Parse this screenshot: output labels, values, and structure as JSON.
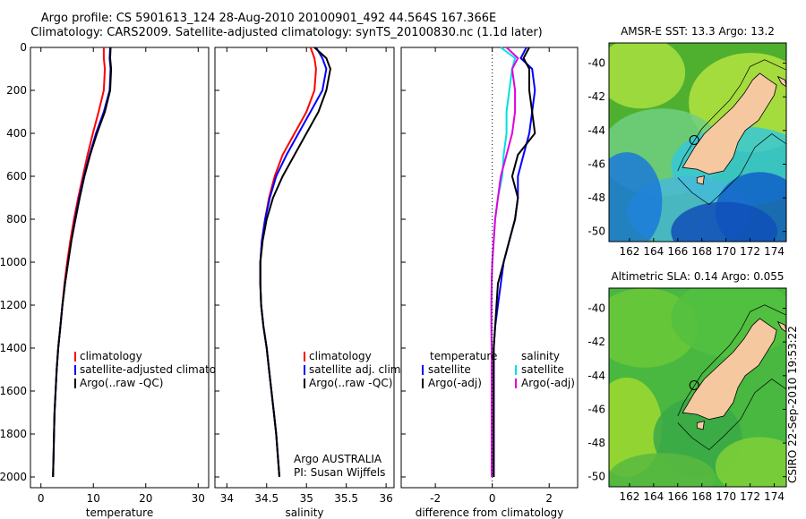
{
  "title_line1": "Argo profile: CS 5901613_124 28-Aug-2010 20100901_492 44.564S 167.366E",
  "title_line2": "Climatology: CARS2009. Satellite-adjusted climatology: synTS_20100830.nc (1.1d later)",
  "stamp": "CSIRO 22-Sep-2010 19:53:22",
  "colors": {
    "climatology": "#ff0000",
    "satellite": "#0000ff",
    "argo": "#000000",
    "salinity_sat": "#00e0e0",
    "salinity_argo": "#e000e0",
    "land": "#f5c8a0"
  },
  "chart_data": [
    {
      "type": "line",
      "xlabel": "temperature",
      "xlim": [
        -2,
        32
      ],
      "ylim": [
        0,
        2050
      ],
      "xticks": [
        0,
        10,
        20,
        30
      ],
      "yticks": [
        0,
        200,
        400,
        600,
        800,
        1000,
        1200,
        1400,
        1600,
        1800,
        2000
      ],
      "legend": [
        "climatology",
        "satellite-adjusted climatology",
        "Argo(..raw -QC)"
      ],
      "depth": [
        0,
        50,
        100,
        200,
        300,
        400,
        500,
        600,
        700,
        800,
        900,
        1000,
        1100,
        1200,
        1300,
        1400,
        1500,
        1600,
        1700,
        1800,
        1900,
        2000
      ],
      "series": [
        {
          "values": [
            12.0,
            12.0,
            12.2,
            12.0,
            11.0,
            9.9,
            8.9,
            8.0,
            7.1,
            6.3,
            5.6,
            5.0,
            4.5,
            4.1,
            3.7,
            3.3,
            3.0,
            2.8,
            2.6,
            2.5,
            2.4,
            2.3
          ]
        },
        {
          "values": [
            13.2,
            13.1,
            13.3,
            13.1,
            12.0,
            10.5,
            9.3,
            8.2,
            7.3,
            6.5,
            5.8,
            5.2,
            4.6,
            4.1,
            3.7,
            3.3,
            3.0,
            2.8,
            2.6,
            2.5,
            2.4,
            2.3
          ]
        },
        {
          "values": [
            13.3,
            13.2,
            13.4,
            13.2,
            12.2,
            10.7,
            9.4,
            8.3,
            7.4,
            6.6,
            5.8,
            5.2,
            4.6,
            4.1,
            3.7,
            3.3,
            3.0,
            2.8,
            2.6,
            2.5,
            2.4,
            2.3
          ]
        }
      ]
    },
    {
      "type": "line",
      "xlabel": "salinity",
      "xlim": [
        33.85,
        36.1
      ],
      "ylim": [
        0,
        2050
      ],
      "xticks": [
        34,
        34.5,
        35,
        35.5,
        36
      ],
      "legend": [
        "climatology",
        "satellite adj. clim.",
        "Argo(..raw -QC)"
      ],
      "annotation": [
        "Argo AUSTRALIA",
        "PI: Susan Wijffels"
      ],
      "depth": [
        0,
        50,
        100,
        200,
        300,
        400,
        500,
        600,
        700,
        800,
        900,
        1000,
        1100,
        1200,
        1300,
        1400,
        1500,
        1600,
        1700,
        1800,
        1900,
        2000
      ],
      "series": [
        {
          "values": [
            35.05,
            35.1,
            35.12,
            35.1,
            35.0,
            34.85,
            34.7,
            34.6,
            34.53,
            34.48,
            34.44,
            34.42,
            34.42,
            34.43,
            34.46,
            34.5,
            34.53,
            34.56,
            34.59,
            34.62,
            34.64,
            34.66
          ]
        },
        {
          "values": [
            35.12,
            35.2,
            35.25,
            35.2,
            35.05,
            34.9,
            34.75,
            34.62,
            34.54,
            34.48,
            34.44,
            34.42,
            34.42,
            34.43,
            34.46,
            34.5,
            34.53,
            34.56,
            34.59,
            34.62,
            34.64,
            34.66
          ]
        },
        {
          "values": [
            35.1,
            35.25,
            35.3,
            35.25,
            35.15,
            35.0,
            34.85,
            34.7,
            34.58,
            34.5,
            34.45,
            34.42,
            34.42,
            34.43,
            34.46,
            34.5,
            34.53,
            34.56,
            34.59,
            34.62,
            34.64,
            34.66
          ]
        }
      ]
    },
    {
      "type": "line",
      "xlabel": "difference from climatology",
      "xlim": [
        -3.2,
        3.0
      ],
      "ylim": [
        0,
        2050
      ],
      "xticks": [
        -2,
        0,
        2
      ],
      "legend_left": [
        "temperature",
        "satellite",
        "Argo(-adj)"
      ],
      "legend_right": [
        "salinity",
        "satellite",
        "Argo(-adj)"
      ],
      "depth": [
        0,
        50,
        100,
        200,
        300,
        400,
        500,
        600,
        700,
        800,
        900,
        1000,
        1100,
        1200,
        1300,
        1400,
        1500,
        1600,
        1700,
        1800,
        1900,
        2000
      ],
      "series": [
        {
          "values": [
            1.2,
            1.0,
            1.4,
            1.5,
            1.4,
            1.3,
            1.1,
            0.9,
            0.9,
            0.8,
            0.6,
            0.4,
            0.3,
            0.2,
            0.1,
            0.05,
            0.05,
            0.05,
            0.05,
            0.05,
            0.05,
            0.05
          ]
        },
        {
          "values": [
            1.3,
            1.1,
            1.3,
            1.3,
            1.4,
            1.5,
            0.9,
            0.7,
            0.9,
            0.8,
            0.6,
            0.4,
            0.2,
            0.15,
            0.1,
            0.05,
            0.05,
            0.05,
            0.05,
            0.05,
            0.05,
            0.05
          ]
        },
        {
          "values": [
            0.3,
            0.8,
            0.7,
            0.6,
            0.5,
            0.5,
            0.4,
            0.35,
            0.2,
            0.1,
            0.05,
            0.0,
            -0.02,
            -0.03,
            -0.03,
            -0.02,
            -0.02,
            -0.02,
            -0.02,
            -0.02,
            -0.02,
            -0.02
          ]
        },
        {
          "values": [
            0.5,
            0.9,
            0.7,
            0.8,
            0.8,
            0.7,
            0.5,
            0.3,
            0.2,
            0.1,
            0.05,
            0.0,
            -0.02,
            -0.03,
            -0.03,
            -0.02,
            -0.02,
            -0.02,
            -0.02,
            -0.02,
            -0.02,
            -0.02
          ]
        }
      ]
    },
    {
      "type": "heatmap",
      "title": "AMSR-E SST: 13.3 Argo: 13.2",
      "xticks": [
        162,
        164,
        166,
        168,
        170,
        172,
        174
      ],
      "yticks": [
        -40,
        -42,
        -44,
        -46,
        -48,
        -50
      ],
      "xlim": [
        160.3,
        175.0
      ],
      "ylim": [
        -50.6,
        -38.8
      ]
    },
    {
      "type": "heatmap",
      "title": "Altimetric SLA: 0.14 Argo: 0.055",
      "xticks": [
        162,
        164,
        166,
        168,
        170,
        172,
        174
      ],
      "yticks": [
        -40,
        -42,
        -44,
        -46,
        -48,
        -50
      ],
      "xlim": [
        160.3,
        175.0
      ],
      "ylim": [
        -50.6,
        -38.8
      ]
    }
  ]
}
